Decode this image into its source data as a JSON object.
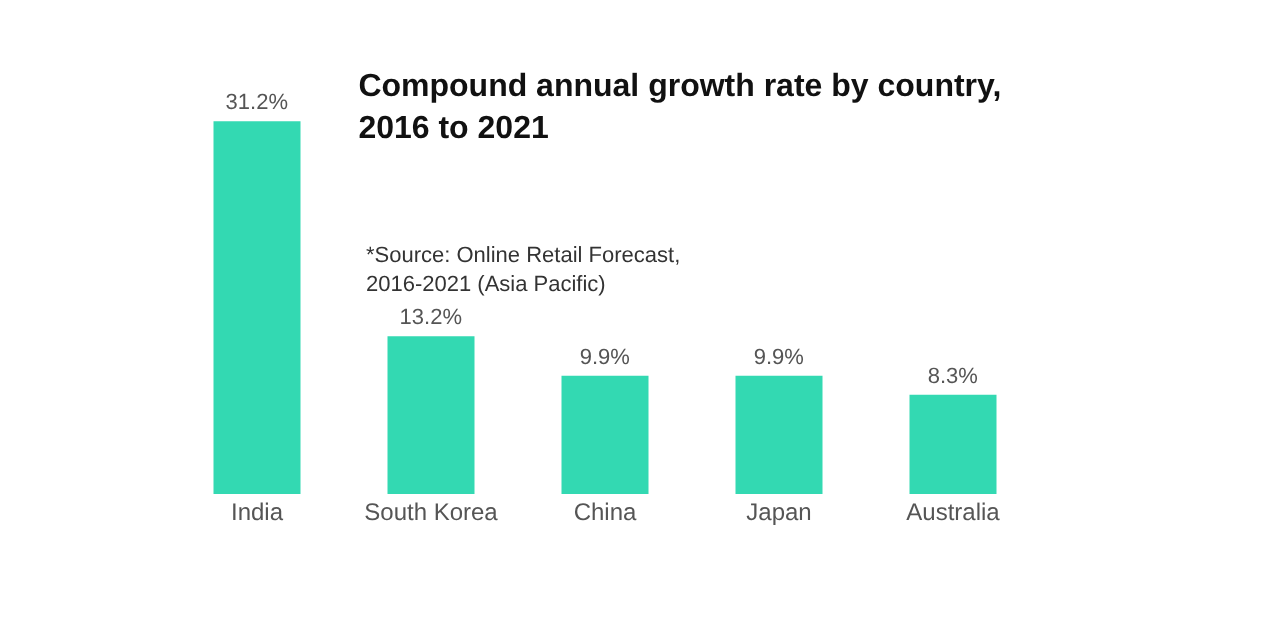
{
  "chart_data": {
    "type": "bar",
    "title": "Compound annual growth rate by country, 2016 to 2021",
    "annotations": [
      "*Source: Online Retail Forecast, 2016-2021 (Asia Pacific)"
    ],
    "categories": [
      "India",
      "South Korea",
      "China",
      "Japan",
      "Australia"
    ],
    "values": [
      31.2,
      13.2,
      9.9,
      9.9,
      8.3
    ],
    "value_labels": [
      "31.2%",
      "13.2%",
      "9.9%",
      "9.9%",
      "8.3%"
    ],
    "color": "#33d9b2",
    "grid": false,
    "legend": false
  }
}
